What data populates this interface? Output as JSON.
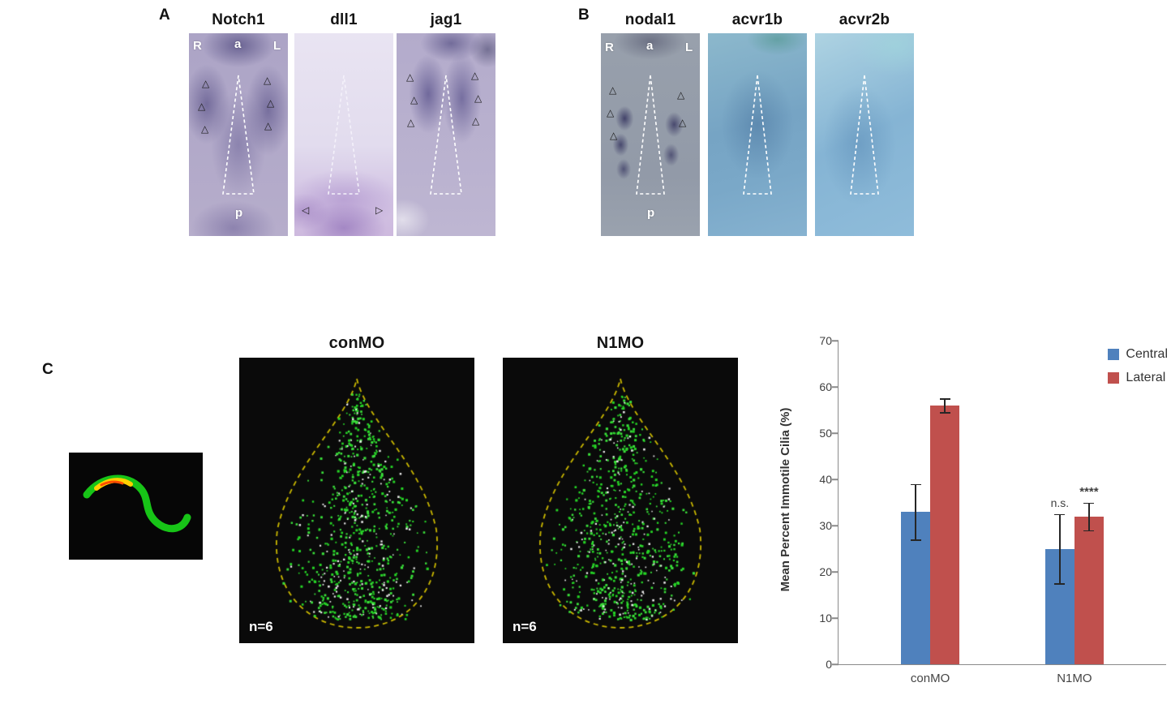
{
  "figure": {
    "panel_a_label": "A",
    "panel_b_label": "B",
    "panel_c_label": "C"
  },
  "icons": {
    "arrowhead_open": "△",
    "arrowhead_left": "◁",
    "arrowhead_right": "▷"
  },
  "panels": {
    "a": {
      "images": [
        {
          "gene": "Notch1",
          "orient": {
            "r": "R",
            "a": "a",
            "l": "L",
            "p": "p"
          }
        },
        {
          "gene": "dll1"
        },
        {
          "gene": "jag1"
        }
      ]
    },
    "b": {
      "images": [
        {
          "gene": "nodal1",
          "orient": {
            "r": "R",
            "a": "a",
            "l": "L",
            "p": "p"
          }
        },
        {
          "gene": "acvr1b"
        },
        {
          "gene": "acvr2b"
        }
      ]
    },
    "c": {
      "scatter_panels": [
        {
          "title": "conMO",
          "n_label": "n=6"
        },
        {
          "title": "N1MO",
          "n_label": "n=6"
        }
      ]
    }
  },
  "chart_data": {
    "type": "bar",
    "categories": [
      "conMO",
      "N1MO"
    ],
    "series": [
      {
        "name": "Central",
        "color": "#4F81BD",
        "values": [
          33,
          25
        ],
        "errors": [
          6,
          7.5
        ]
      },
      {
        "name": "Lateral",
        "color": "#C0504D",
        "values": [
          56,
          32
        ],
        "errors": [
          1.5,
          3
        ]
      }
    ],
    "ylabel": "Mean Percent Immotile Cilia (%)",
    "ylim": [
      0,
      70
    ],
    "ytick_step": 10,
    "grid": false,
    "legend_position": "top-right",
    "annotations": [
      {
        "text": "n.s.",
        "category_index": 1,
        "series_index": 0
      },
      {
        "text": "****",
        "category_index": 1,
        "series_index": 1
      }
    ]
  }
}
